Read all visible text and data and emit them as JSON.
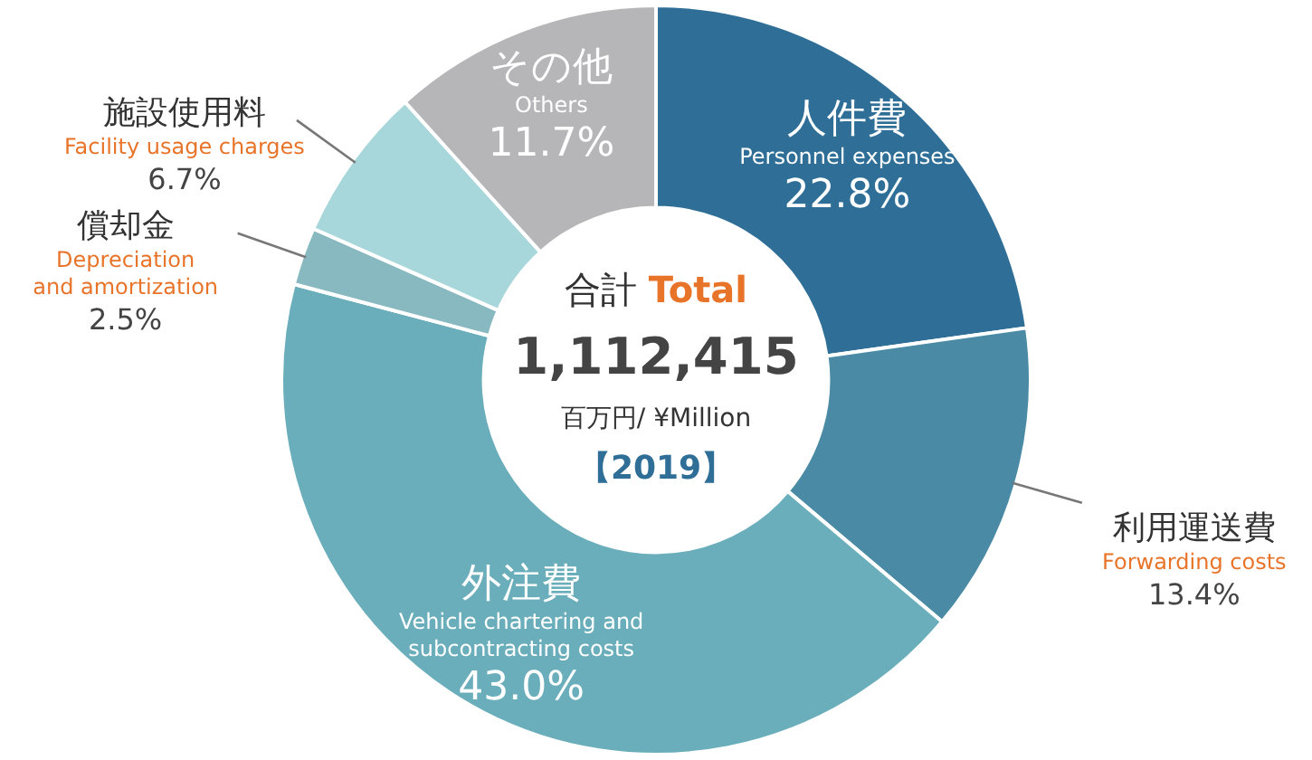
{
  "chart_data": {
    "type": "donut",
    "categories": [
      "人件費\nPersonnel expenses",
      "利用運送費\nForwarding costs",
      "外注費\nVehicle chartering and\nsubcontracting costs",
      "償却金\nDepreciation\nand amortization",
      "施設使用料\nFacility usage charges",
      "その他\nOthers"
    ],
    "values": [
      22.8,
      13.4,
      43.0,
      2.5,
      6.7,
      11.7
    ],
    "colors": [
      "#2f6f97",
      "#4a8aa4",
      "#6aaebb",
      "#88b9c1",
      "#a7d7db",
      "#b6b6b9"
    ],
    "value_labels": [
      "22.8%",
      "13.4%",
      "43.0%",
      "2.5%",
      "6.7%",
      "11.7%"
    ],
    "annotations": [
      "合計 Total",
      "1,112,415",
      "百万円/ ¥Million",
      "【2019】"
    ],
    "legend": false
  }
}
